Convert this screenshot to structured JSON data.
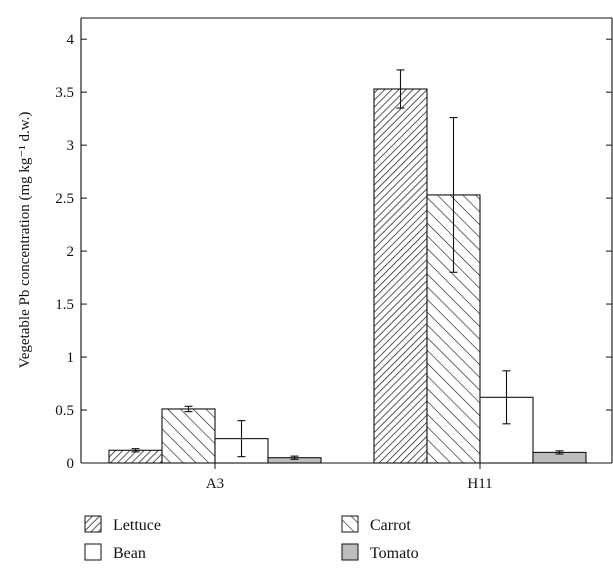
{
  "chart_data": {
    "type": "bar",
    "title": "",
    "xlabel": "",
    "ylabel": "Vegetable Pb concentration (mg kg⁻¹ d.w.)",
    "categories": [
      "A3",
      "H11"
    ],
    "ylim": [
      0,
      4.2
    ],
    "yticks": [
      0,
      0.5,
      1,
      1.5,
      2,
      2.5,
      3,
      3.5,
      4
    ],
    "ytick_labels": [
      "0",
      "0.5",
      "1",
      "1.5",
      "2",
      "2.5",
      "3",
      "3.5",
      "4"
    ],
    "grid": false,
    "legend_position": "bottom",
    "series": [
      {
        "name": "Lettuce",
        "values": [
          0.12,
          3.53
        ],
        "errors": [
          0.015,
          0.18
        ],
        "pattern": "dense-diagonal-hatch"
      },
      {
        "name": "Carrot",
        "values": [
          0.51,
          2.53
        ],
        "errors": [
          0.025,
          0.73
        ],
        "pattern": "wide-diagonal-hatch"
      },
      {
        "name": "Bean",
        "values": [
          0.23,
          0.62
        ],
        "errors": [
          0.17,
          0.25
        ],
        "pattern": "solid",
        "color": "#ffffff"
      },
      {
        "name": "Tomato",
        "values": [
          0.05,
          0.1
        ],
        "errors": [
          0.015,
          0.015
        ],
        "pattern": "solid",
        "color": "#bdbdbd"
      }
    ]
  }
}
